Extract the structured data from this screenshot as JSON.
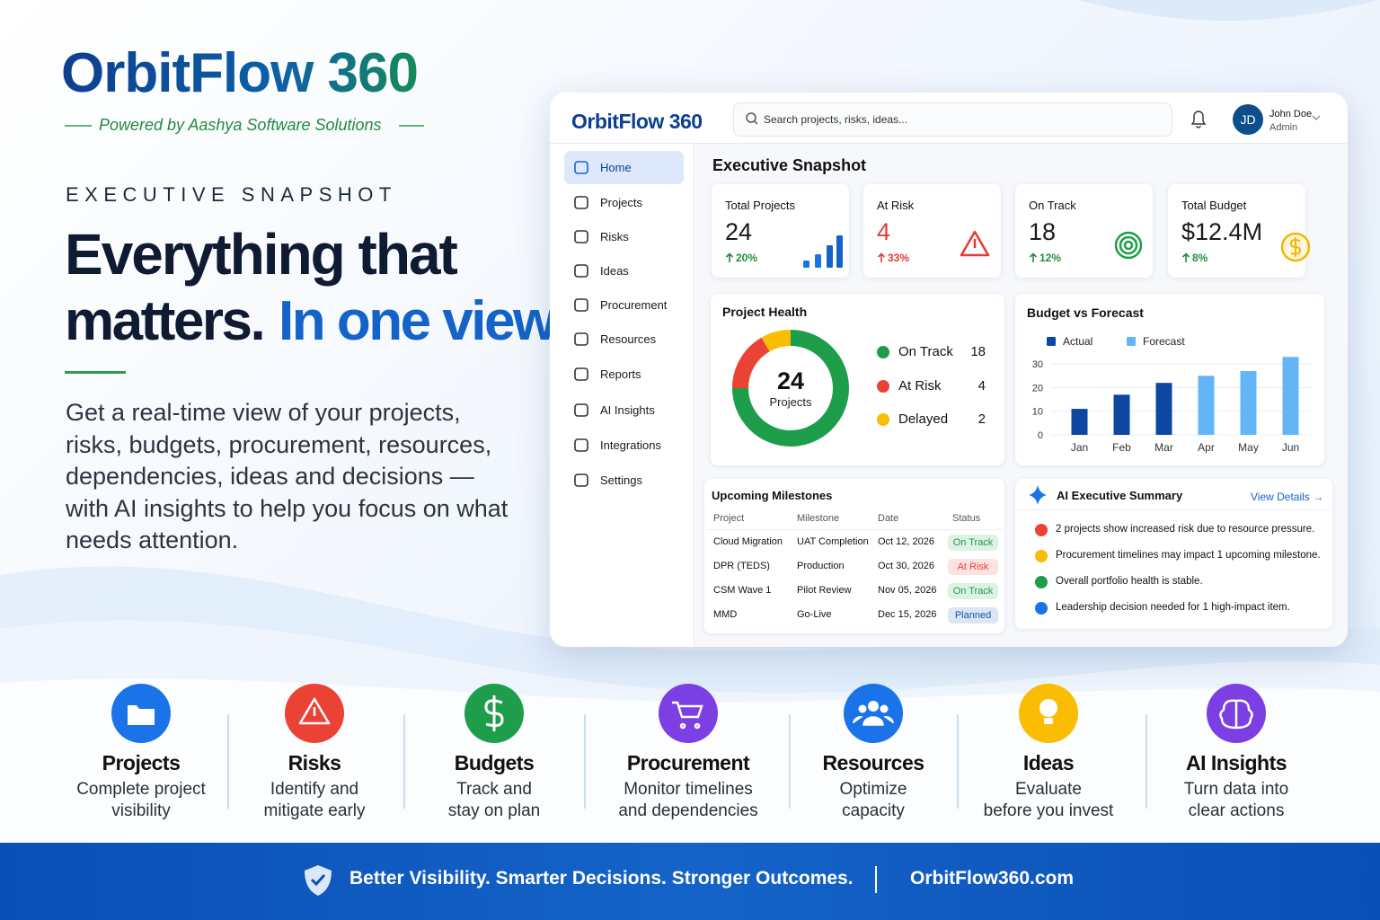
{
  "brand": {
    "name": "OrbitFlow 360",
    "tagline": "Powered by Aashya Software Solutions"
  },
  "hero": {
    "eyebrow": "EXECUTIVE SNAPSHOT",
    "headline": "Everything that",
    "headline_line2": "matters.",
    "headline_accent": "In one view.",
    "description": "Get a real-time view of your projects, risks, budgets, procurement, resources, dependencies, ideas and decisions — with AI insights to help you focus on what needs attention."
  },
  "dashboard": {
    "logo": "OrbitFlow 360",
    "search_placeholder": "Search projects, risks, ideas...",
    "user": {
      "initials": "JD",
      "name": "John Doe",
      "role": "Admin"
    },
    "nav": [
      "Home",
      "Projects",
      "Risks",
      "Ideas",
      "Procurement",
      "Resources",
      "Reports",
      "AI Insights",
      "Integrations",
      "Settings"
    ],
    "title": "Executive Snapshot",
    "kpis": [
      {
        "label": "Total Projects",
        "value": "24",
        "change": "20%",
        "color": "#1a1a1a"
      },
      {
        "label": "At Risk",
        "value": "4",
        "change": "33%",
        "color": "#e53935"
      },
      {
        "label": "On Track",
        "value": "18",
        "change": "12%",
        "color": "#1a1a1a"
      },
      {
        "label": "Total Budget",
        "value": "$12.4M",
        "change": "8%",
        "color": "#1a1a1a"
      }
    ],
    "project_health": {
      "type": "donut",
      "title": "Project Health",
      "center_value": 24,
      "center_label": "Projects",
      "categories": [
        "On Track",
        "At Risk",
        "Delayed"
      ],
      "values": [
        18,
        4,
        2
      ],
      "colors": [
        "#1e9e4a",
        "#ea4335",
        "#fbbc04"
      ]
    },
    "budget_chart": {
      "type": "bar",
      "title": "Budget vs Forecast",
      "categories": [
        "Jan",
        "Feb",
        "Mar",
        "Apr",
        "May",
        "Jun"
      ],
      "series": [
        {
          "name": "Actual",
          "color": "#0d47a1",
          "values": [
            11,
            17,
            22,
            null,
            null,
            null
          ]
        },
        {
          "name": "Forecast",
          "color": "#64b5f6",
          "values": [
            null,
            null,
            null,
            25,
            27,
            33
          ]
        }
      ],
      "ylim": [
        0,
        35
      ],
      "yticks": [
        0,
        10,
        20,
        30
      ],
      "grid": true
    },
    "milestones": {
      "title": "Upcoming Milestones",
      "headers": [
        "Project",
        "Milestone",
        "Date",
        "Status"
      ],
      "rows": [
        [
          "Cloud Migration",
          "UAT Completion",
          "Oct 12, 2026",
          "On Track"
        ],
        [
          "DPR (TEDS)",
          "Production",
          "Oct 30, 2026",
          "At Risk"
        ],
        [
          "CSM Wave 1",
          "Pilot Review",
          "Nov 05, 2026",
          "On Track"
        ],
        [
          "MMD",
          "Go-Live",
          "Dec 15, 2026",
          "Planned"
        ]
      ]
    },
    "ai_summary": {
      "title": "AI Executive Summary",
      "link": "View Details →",
      "items": [
        {
          "text": "2 projects show increased risk due to resource pressure.",
          "color": "#ea4335"
        },
        {
          "text": "Procurement timelines may impact 1 upcoming milestone.",
          "color": "#fbbc04"
        },
        {
          "text": "Overall portfolio health is stable.",
          "color": "#1e9e4a"
        },
        {
          "text": "Leadership decision needed for 1 high-impact item.",
          "color": "#1a73e8"
        }
      ]
    }
  },
  "features": [
    {
      "title": "Projects",
      "description": "Complete project\nvisibility",
      "color": "#1a73e8"
    },
    {
      "title": "Risks",
      "description": "Identify and\nmitigate early",
      "color": "#ea4335"
    },
    {
      "title": "Budgets",
      "description": "Track and\nstay on plan",
      "color": "#1e9e4a"
    },
    {
      "title": "Procurement",
      "description": "Monitor timelines\nand dependencies",
      "color": "#7b3fe4"
    },
    {
      "title": "Resources",
      "description": "Optimize\ncapacity",
      "color": "#1a73e8"
    },
    {
      "title": "Ideas",
      "description": "Evaluate\nbefore you invest",
      "color": "#fbbc04"
    },
    {
      "title": "AI Insights",
      "description": "Turn data into\nclear actions",
      "color": "#7b3fe4"
    }
  ],
  "footer": {
    "slogan": "Better Visibility. Smarter Decisions. Stronger Outcomes.",
    "url": "OrbitFlow360.com"
  }
}
